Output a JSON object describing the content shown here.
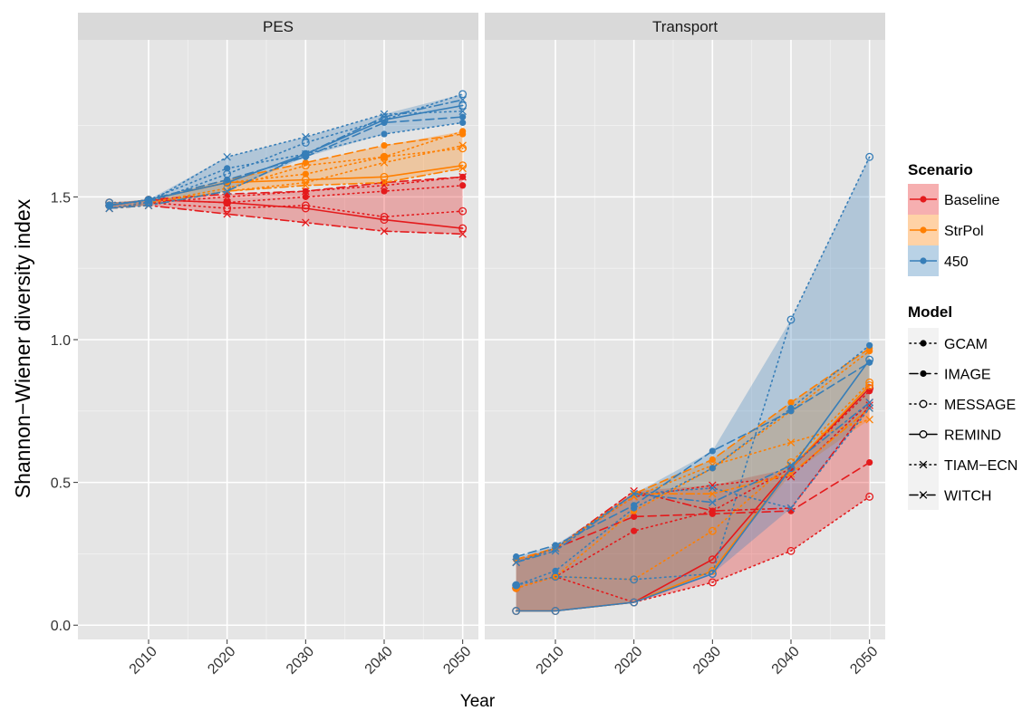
{
  "chart_data": {
    "type": "line",
    "ylabel": "Shannon−Wiener diversity index",
    "xlabel": "Year",
    "x": [
      2005,
      2010,
      2020,
      2030,
      2040,
      2050
    ],
    "x_ticks": [
      "2010",
      "2020",
      "2030",
      "2040",
      "2050"
    ],
    "xlim": [
      2001,
      2052
    ],
    "y_ticks": [
      "0.0",
      "0.5",
      "1.0",
      "1.5"
    ],
    "y_tick_values": [
      0.0,
      0.5,
      1.0,
      1.5
    ],
    "ylim": [
      -0.05,
      2.05
    ],
    "grid": true,
    "legend_placement": "right",
    "legend": {
      "scenario_title": "Scenario",
      "model_title": "Model"
    },
    "scenarios": [
      {
        "name": "Baseline",
        "color": "#e41a1c"
      },
      {
        "name": "StrPol",
        "color": "#ff7f00"
      },
      {
        "name": "450",
        "color": "#377eb8"
      }
    ],
    "models": [
      {
        "name": "GCAM",
        "dash": "1.5,4",
        "marker": "filled-circle"
      },
      {
        "name": "IMAGE",
        "dash": "9,5",
        "marker": "filled-circle"
      },
      {
        "name": "MESSAGE",
        "dash": "1.5,4",
        "marker": "open-circle"
      },
      {
        "name": "REMIND",
        "dash": "",
        "marker": "open-circle"
      },
      {
        "name": "TIAM−ECN",
        "dash": "1.5,4",
        "marker": "cross"
      },
      {
        "name": "WITCH",
        "dash": "9,4,2,4",
        "marker": "cross"
      }
    ],
    "panels": [
      {
        "name": "PES",
        "series": [
          {
            "scenario": "Baseline",
            "model": "GCAM",
            "values": [
              1.47,
              1.49,
              1.48,
              1.5,
              1.52,
              1.54
            ]
          },
          {
            "scenario": "Baseline",
            "model": "IMAGE",
            "values": [
              1.47,
              1.49,
              1.51,
              1.52,
              1.55,
              1.57
            ]
          },
          {
            "scenario": "Baseline",
            "model": "MESSAGE",
            "values": [
              1.48,
              1.48,
              1.46,
              1.47,
              1.43,
              1.45
            ]
          },
          {
            "scenario": "Baseline",
            "model": "REMIND",
            "values": [
              1.47,
              1.49,
              1.48,
              1.46,
              1.42,
              1.39
            ]
          },
          {
            "scenario": "Baseline",
            "model": "TIAM−ECN",
            "values": [
              1.46,
              1.48,
              1.5,
              1.52,
              1.54,
              1.57
            ]
          },
          {
            "scenario": "Baseline",
            "model": "WITCH",
            "values": [
              1.46,
              1.47,
              1.44,
              1.41,
              1.38,
              1.37
            ]
          },
          {
            "scenario": "StrPol",
            "model": "GCAM",
            "values": [
              1.47,
              1.49,
              1.55,
              1.58,
              1.64,
              1.73
            ]
          },
          {
            "scenario": "StrPol",
            "model": "IMAGE",
            "values": [
              1.47,
              1.49,
              1.56,
              1.62,
              1.68,
              1.72
            ]
          },
          {
            "scenario": "StrPol",
            "model": "MESSAGE",
            "values": [
              1.48,
              1.48,
              1.53,
              1.61,
              1.64,
              1.67
            ]
          },
          {
            "scenario": "StrPol",
            "model": "REMIND",
            "values": [
              1.47,
              1.49,
              1.55,
              1.56,
              1.57,
              1.61
            ]
          },
          {
            "scenario": "StrPol",
            "model": "TIAM−ECN",
            "values": [
              1.46,
              1.48,
              1.52,
              1.55,
              1.62,
              1.68
            ]
          },
          {
            "scenario": "StrPol",
            "model": "WITCH",
            "values": [
              1.46,
              1.47,
              1.52,
              1.54,
              1.55,
              1.6
            ]
          },
          {
            "scenario": "450",
            "model": "GCAM",
            "values": [
              1.47,
              1.49,
              1.6,
              1.65,
              1.72,
              1.76
            ]
          },
          {
            "scenario": "450",
            "model": "IMAGE",
            "values": [
              1.47,
              1.49,
              1.56,
              1.64,
              1.76,
              1.78
            ]
          },
          {
            "scenario": "450",
            "model": "MESSAGE",
            "values": [
              1.48,
              1.48,
              1.58,
              1.69,
              1.77,
              1.86
            ]
          },
          {
            "scenario": "450",
            "model": "REMIND",
            "values": [
              1.47,
              1.49,
              1.55,
              1.65,
              1.77,
              1.82
            ]
          },
          {
            "scenario": "450",
            "model": "TIAM−ECN",
            "values": [
              1.46,
              1.48,
              1.64,
              1.71,
              1.79,
              1.8
            ]
          },
          {
            "scenario": "450",
            "model": "WITCH",
            "values": [
              1.46,
              1.47,
              1.52,
              1.65,
              1.78,
              1.84
            ]
          }
        ]
      },
      {
        "name": "Transport",
        "series": [
          {
            "scenario": "Baseline",
            "model": "GCAM",
            "values": [
              0.13,
              0.17,
              0.33,
              0.4,
              0.55,
              0.82
            ]
          },
          {
            "scenario": "Baseline",
            "model": "IMAGE",
            "values": [
              0.23,
              0.27,
              0.38,
              0.39,
              0.4,
              0.57
            ]
          },
          {
            "scenario": "Baseline",
            "model": "MESSAGE",
            "values": [
              0.13,
              0.17,
              0.08,
              0.15,
              0.26,
              0.45
            ]
          },
          {
            "scenario": "Baseline",
            "model": "REMIND",
            "values": [
              0.05,
              0.05,
              0.08,
              0.23,
              0.55,
              0.83
            ]
          },
          {
            "scenario": "Baseline",
            "model": "TIAM−ECN",
            "values": [
              0.22,
              0.27,
              0.45,
              0.49,
              0.52,
              0.78
            ]
          },
          {
            "scenario": "Baseline",
            "model": "WITCH",
            "values": [
              0.22,
              0.27,
              0.47,
              0.4,
              0.41,
              0.77
            ]
          },
          {
            "scenario": "StrPol",
            "model": "GCAM",
            "values": [
              0.13,
              0.17,
              0.4,
              0.55,
              0.75,
              0.96
            ]
          },
          {
            "scenario": "StrPol",
            "model": "IMAGE",
            "values": [
              0.23,
              0.27,
              0.46,
              0.58,
              0.78,
              0.97
            ]
          },
          {
            "scenario": "StrPol",
            "model": "MESSAGE",
            "values": [
              0.13,
              0.17,
              0.16,
              0.33,
              0.57,
              0.85
            ]
          },
          {
            "scenario": "StrPol",
            "model": "REMIND",
            "values": [
              0.05,
              0.05,
              0.08,
              0.19,
              0.55,
              0.84
            ]
          },
          {
            "scenario": "StrPol",
            "model": "TIAM−ECN",
            "values": [
              0.22,
              0.27,
              0.45,
              0.56,
              0.64,
              0.72
            ]
          },
          {
            "scenario": "StrPol",
            "model": "WITCH",
            "values": [
              0.22,
              0.27,
              0.46,
              0.46,
              0.53,
              0.76
            ]
          },
          {
            "scenario": "450",
            "model": "GCAM",
            "values": [
              0.14,
              0.19,
              0.41,
              0.55,
              0.76,
              0.98
            ]
          },
          {
            "scenario": "450",
            "model": "IMAGE",
            "values": [
              0.24,
              0.28,
              0.42,
              0.61,
              0.75,
              0.92
            ]
          },
          {
            "scenario": "450",
            "model": "MESSAGE",
            "values": [
              0.14,
              0.17,
              0.16,
              0.18,
              1.07,
              1.64
            ]
          },
          {
            "scenario": "450",
            "model": "REMIND",
            "values": [
              0.05,
              0.05,
              0.08,
              0.18,
              0.55,
              0.93
            ]
          },
          {
            "scenario": "450",
            "model": "TIAM−ECN",
            "values": [
              0.22,
              0.27,
              0.46,
              0.48,
              0.41,
              0.76
            ]
          },
          {
            "scenario": "450",
            "model": "WITCH",
            "values": [
              0.22,
              0.26,
              0.46,
              0.43,
              0.56,
              0.78
            ]
          }
        ]
      }
    ]
  }
}
